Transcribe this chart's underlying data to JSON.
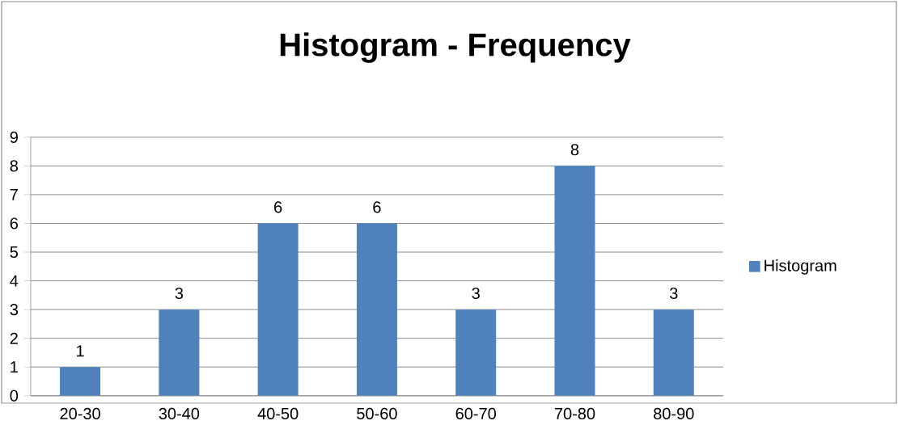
{
  "chart_data": {
    "type": "bar",
    "title": "Histogram - Frequency",
    "categories": [
      "20-30",
      "30-40",
      "40-50",
      "50-60",
      "60-70",
      "70-80",
      "80-90"
    ],
    "series": [
      {
        "name": "Histogram",
        "color": "#4f81bd",
        "values": [
          1,
          3,
          6,
          6,
          3,
          8,
          3
        ]
      }
    ],
    "ylim": [
      0,
      9
    ],
    "yticks": [
      0,
      1,
      2,
      3,
      4,
      5,
      6,
      7,
      8,
      9
    ],
    "grid": "y",
    "legend": "right",
    "data_labels": true
  }
}
